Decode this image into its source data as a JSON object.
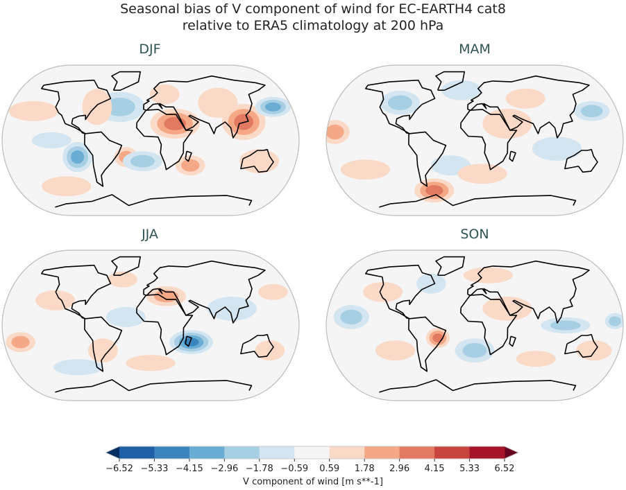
{
  "figure": {
    "title_line1": "Seasonal bias of V component of wind for EC-EARTH4 cat8",
    "title_line2": "relative to ERA5 climatology at 200 hPa"
  },
  "panels": [
    {
      "season": "DJF"
    },
    {
      "season": "MAM"
    },
    {
      "season": "JJA"
    },
    {
      "season": "SON"
    }
  ],
  "colorbar": {
    "label": "V component of wind [m s**-1]",
    "ticks": [
      "−6.52",
      "−5.33",
      "−4.15",
      "−2.96",
      "−1.78",
      "−0.59",
      "0.59",
      "1.78",
      "2.96",
      "4.15",
      "5.33",
      "6.52"
    ],
    "colors": [
      "#1f5fa5",
      "#3a85be",
      "#6aadd4",
      "#a6cfe4",
      "#d3e5f0",
      "#f5f5f5",
      "#fbd9c7",
      "#f4a885",
      "#e27a62",
      "#c8443e",
      "#a61429"
    ],
    "extend_low_color": "#053061",
    "extend_high_color": "#67001f"
  }
}
